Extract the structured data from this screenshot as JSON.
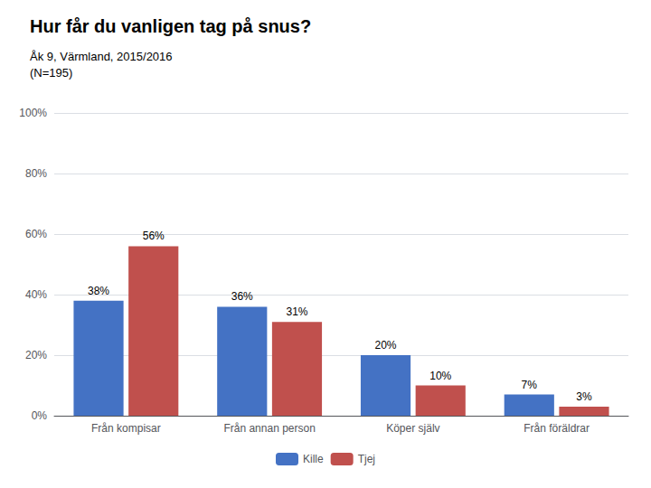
{
  "chart_data": {
    "type": "bar",
    "title": "Hur får du vanligen tag på snus?",
    "subtitle": [
      "Åk 9, Värmland, 2015/2016",
      "(N=195)"
    ],
    "categories": [
      "Från kompisar",
      "Från annan person",
      "Köper själv",
      "Från föräldrar"
    ],
    "series": [
      {
        "name": "Kille",
        "color": "#4472C4",
        "values": [
          38,
          36,
          20,
          7
        ],
        "value_labels": [
          "38%",
          "36%",
          "20%",
          "7%"
        ]
      },
      {
        "name": "Tjej",
        "color": "#C0504D",
        "values": [
          56,
          31,
          10,
          3
        ],
        "value_labels": [
          "56%",
          "31%",
          "10%",
          "3%"
        ]
      }
    ],
    "ylim": [
      0,
      100
    ],
    "yticks": [
      {
        "value": 0,
        "label": "0%"
      },
      {
        "value": 20,
        "label": "20%"
      },
      {
        "value": 40,
        "label": "40%"
      },
      {
        "value": 60,
        "label": "60%"
      },
      {
        "value": 80,
        "label": "80%"
      },
      {
        "value": 100,
        "label": "100%"
      }
    ],
    "grid": true,
    "legend": "bottom",
    "data_labels": true
  }
}
